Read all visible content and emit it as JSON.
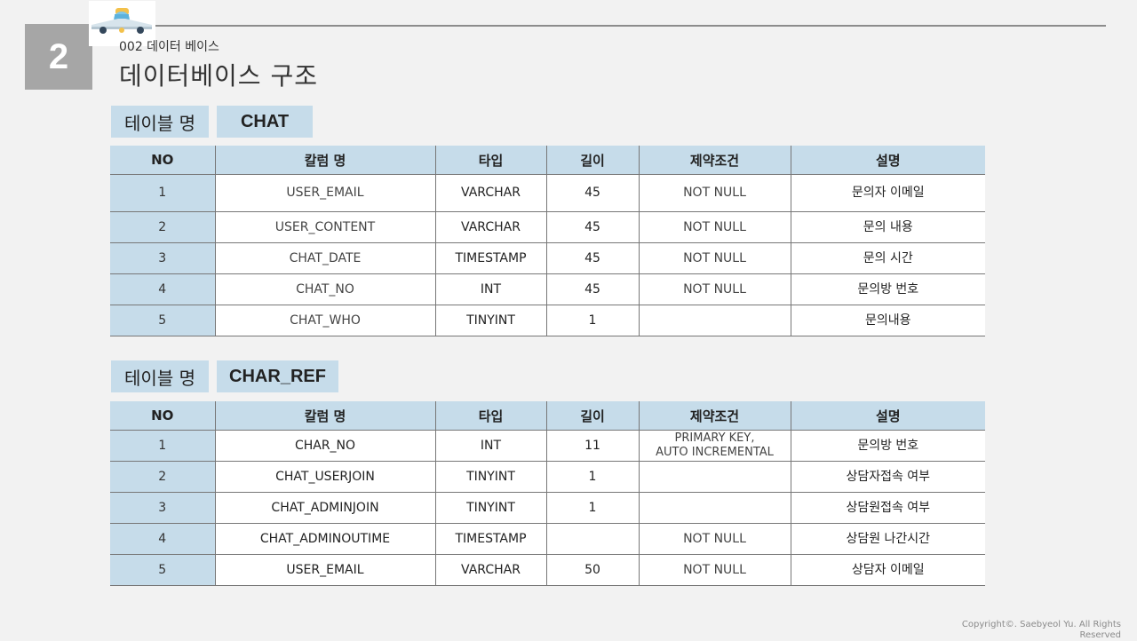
{
  "slide": {
    "number": "2",
    "subtitle": "002 데이터 베이스",
    "title": "데이터베이스 구조",
    "copyright": "Copyright©. Saebyeol Yu. All Rights Reserved"
  },
  "headers": [
    "NO",
    "칼럼 명",
    "타입",
    "길이",
    "제약조건",
    "설명"
  ],
  "tables": [
    {
      "label": "테이블 명",
      "name": "CHAT",
      "rows": [
        [
          "1",
          "USER_EMAIL",
          "VARCHAR",
          "45",
          "NOT NULL",
          "문의자 이메일"
        ],
        [
          "2",
          "USER_CONTENT",
          "VARCHAR",
          "45",
          "NOT NULL",
          "문의 내용"
        ],
        [
          "3",
          "CHAT_DATE",
          "TIMESTAMP",
          "45",
          "NOT NULL",
          "문의 시간"
        ],
        [
          "4",
          "CHAT_NO",
          "INT",
          "45",
          "NOT NULL",
          "문의방 번호"
        ],
        [
          "5",
          "CHAT_WHO",
          "TINYINT",
          "1",
          "",
          "문의내용"
        ]
      ]
    },
    {
      "label": "테이블 명",
      "name": "CHAR_REF",
      "rows": [
        [
          "1",
          "CHAR_NO",
          "INT",
          "11",
          "PRIMARY KEY,\nAUTO INCREMENTAL",
          "문의방 번호"
        ],
        [
          "2",
          "CHAT_USERJOIN",
          "TINYINT",
          "1",
          "",
          "상담자접속 여부"
        ],
        [
          "3",
          "CHAT_ADMINJOIN",
          "TINYINT",
          "1",
          "",
          "상담원접속 여부"
        ],
        [
          "4",
          "CHAT_ADMINOUTIME",
          "TIMESTAMP",
          "",
          "NOT NULL",
          "상담원 나간시간"
        ],
        [
          "5",
          "USER_EMAIL",
          "VARCHAR",
          "50",
          "NOT NULL",
          "상담자 이메일"
        ]
      ]
    }
  ]
}
